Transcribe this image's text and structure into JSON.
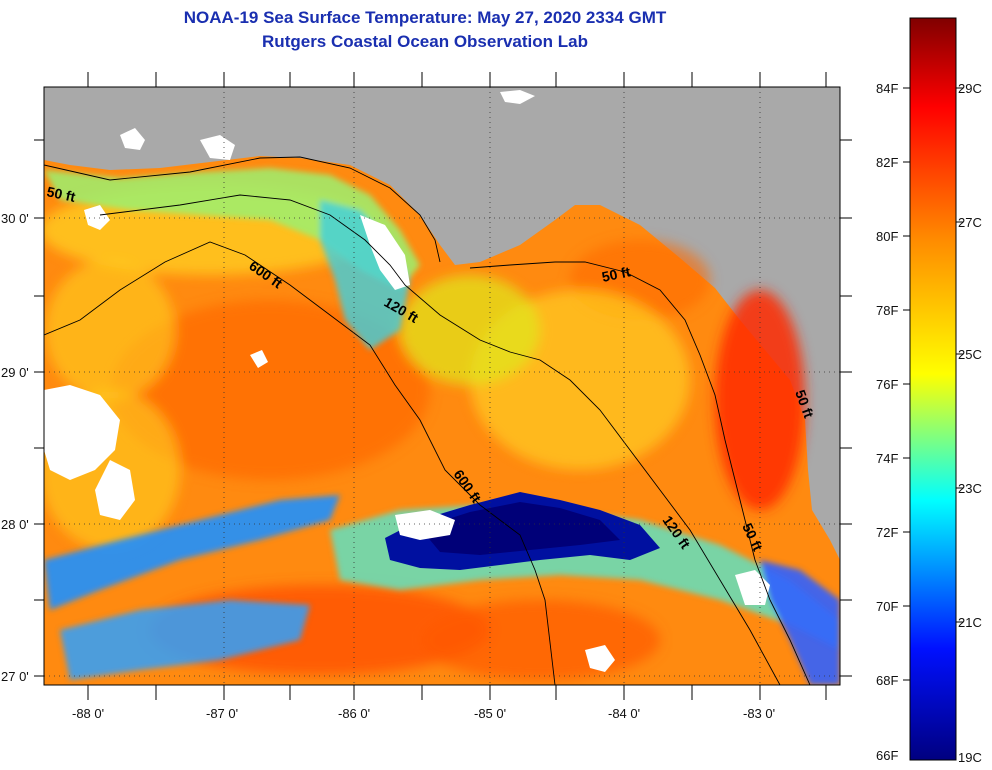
{
  "title": "NOAA-19 Sea Surface Temperature:  May 27, 2020 2334 GMT",
  "subtitle": "Rutgers Coastal Ocean Observation Lab",
  "map": {
    "lon_labels": [
      "-88 0'",
      "-87 0'",
      "-86 0'",
      "-85 0'",
      "-84 0'",
      "-83 0'"
    ],
    "lat_labels": [
      "30 0'",
      "29 0'",
      "28 0'",
      "27 0'"
    ],
    "contour_labels": [
      "50 ft",
      "600 ft",
      "120 ft",
      "50 ft",
      "600 ft",
      "120 ft",
      "50 ft",
      "50 ft"
    ],
    "land_color": "#a9a9a9",
    "cloud_color": "#ffffff"
  },
  "colorbar": {
    "fahrenheit_labels": [
      "84F",
      "82F",
      "80F",
      "78F",
      "76F",
      "74F",
      "72F",
      "70F",
      "68F",
      "66F"
    ],
    "celsius_labels": [
      "29C",
      "27C",
      "25C",
      "23C",
      "21C",
      "19C"
    ],
    "colors": [
      "#000080",
      "#0000ff",
      "#00ffff",
      "#ffff00",
      "#ff8000",
      "#ff0000",
      "#800000"
    ]
  }
}
